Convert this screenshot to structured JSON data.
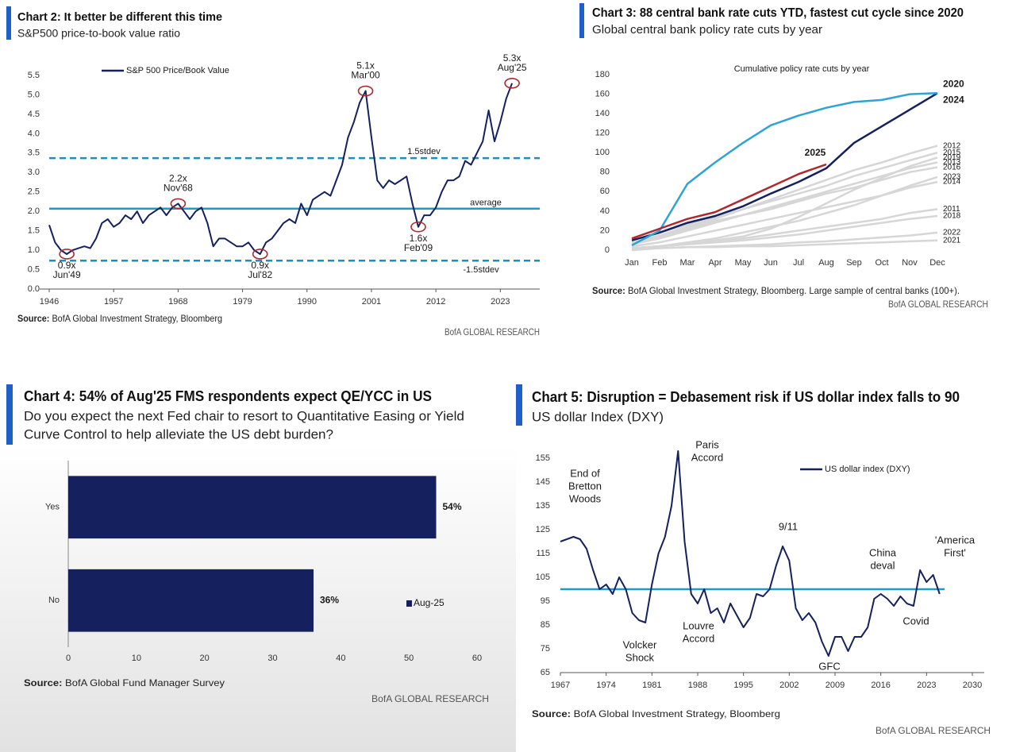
{
  "chart_data": [
    {
      "type": "line",
      "title": "Chart 2: It better be different this time",
      "subtitle": "S&P500 price-to-book value ratio",
      "x": [
        1946,
        1947,
        1948,
        1949,
        1950,
        1951,
        1952,
        1953,
        1954,
        1955,
        1956,
        1957,
        1958,
        1959,
        1960,
        1961,
        1962,
        1963,
        1964,
        1965,
        1966,
        1967,
        1968,
        1969,
        1970,
        1971,
        1972,
        1973,
        1974,
        1975,
        1976,
        1977,
        1978,
        1979,
        1980,
        1981,
        1982,
        1983,
        1984,
        1985,
        1986,
        1987,
        1988,
        1989,
        1990,
        1991,
        1992,
        1993,
        1994,
        1995,
        1996,
        1997,
        1998,
        1999,
        2000,
        2001,
        2002,
        2003,
        2004,
        2005,
        2006,
        2007,
        2008,
        2009,
        2010,
        2011,
        2012,
        2013,
        2014,
        2015,
        2016,
        2017,
        2018,
        2019,
        2020,
        2021,
        2022,
        2023,
        2024,
        2025
      ],
      "series": [
        {
          "name": "S&P 500 Price/Book Value",
          "color": "#14215e",
          "values": [
            1.65,
            1.2,
            1.0,
            0.9,
            1.0,
            1.05,
            1.1,
            1.05,
            1.3,
            1.7,
            1.8,
            1.6,
            1.7,
            1.9,
            1.8,
            2.0,
            1.7,
            1.9,
            2.0,
            2.1,
            1.9,
            2.1,
            2.2,
            2.0,
            1.8,
            2.0,
            2.1,
            1.7,
            1.1,
            1.3,
            1.3,
            1.2,
            1.1,
            1.1,
            1.2,
            1.0,
            0.9,
            1.2,
            1.3,
            1.5,
            1.7,
            1.8,
            1.7,
            2.2,
            1.9,
            2.3,
            2.4,
            2.5,
            2.4,
            2.8,
            3.2,
            3.9,
            4.3,
            4.8,
            5.1,
            3.9,
            2.8,
            2.6,
            2.8,
            2.7,
            2.8,
            2.9,
            2.2,
            1.6,
            1.9,
            1.9,
            2.1,
            2.5,
            2.8,
            2.8,
            2.9,
            3.3,
            3.2,
            3.5,
            3.8,
            4.6,
            3.8,
            4.3,
            4.9,
            5.3
          ]
        }
      ],
      "xlim": [
        1946,
        2030
      ],
      "xticks": [
        1946,
        1957,
        1968,
        1979,
        1990,
        2001,
        2012,
        2023
      ],
      "ylim": [
        0,
        5.5
      ],
      "yticks": [
        {
          "value": 0,
          "label": "0.0"
        },
        0.5,
        {
          "value": 1,
          "label": "1.0"
        },
        1.5,
        {
          "value": 2,
          "label": "2.0"
        },
        2.5,
        {
          "value": 3,
          "label": "3.0"
        },
        3.5,
        {
          "value": 4,
          "label": "4.0"
        },
        4.5,
        {
          "value": 5,
          "label": "5.0"
        },
        5.5
      ],
      "reference_lines": [
        {
          "value": 3.37,
          "label": "1.5stdev",
          "style": "dashed",
          "color": "#1a8fc2"
        },
        {
          "value": 2.07,
          "label": "average",
          "style": "solid",
          "color": "#1a9bc8"
        },
        {
          "value": 0.73,
          "label": "-1.5stdev",
          "style": "dashed",
          "color": "#1a8fc2"
        }
      ],
      "annotations": [
        {
          "x": 1949,
          "value": 0.9,
          "label": "0.9x",
          "date": "Jun'49"
        },
        {
          "x": 1968,
          "value": 2.2,
          "label": "2.2x",
          "date": "Nov'68"
        },
        {
          "x": 1982,
          "value": 0.9,
          "label": "0.9x",
          "date": "Jul'82"
        },
        {
          "x": 2000,
          "value": 5.1,
          "label": "5.1x",
          "date": "Mar'00"
        },
        {
          "x": 2009,
          "value": 1.6,
          "label": "1.6x",
          "date": "Feb'09"
        },
        {
          "x": 2025,
          "value": 5.3,
          "label": "5.3x",
          "date": "Aug'25"
        }
      ],
      "annotation_color": "#b0282e",
      "source_label": "Source:",
      "source": "BofA Global Investment Strategy, Bloomberg",
      "footer": "BofA GLOBAL RESEARCH"
    },
    {
      "type": "line",
      "title": "Chart 3: 88 central bank rate cuts YTD, fastest cut cycle since 2020",
      "subtitle": "Global central bank policy rate cuts by year",
      "plot_title": "Cumulative policy rate cuts by year",
      "categories": [
        "Jan",
        "Feb",
        "Mar",
        "Apr",
        "May",
        "Jun",
        "Jul",
        "Aug",
        "Sep",
        "Oct",
        "Nov",
        "Dec"
      ],
      "series": [
        {
          "name": "2012",
          "color": "#d6d6d6",
          "values": [
            8,
            15,
            24,
            32,
            42,
            52,
            62,
            72,
            82,
            90,
            99,
            107
          ]
        },
        {
          "name": "2015",
          "color": "#d6d6d6",
          "values": [
            10,
            18,
            26,
            34,
            42,
            50,
            58,
            66,
            76,
            84,
            92,
            100
          ]
        },
        {
          "name": "2019",
          "color": "#d6d6d6",
          "values": [
            2,
            4,
            6,
            10,
            14,
            22,
            34,
            48,
            62,
            74,
            86,
            95
          ]
        },
        {
          "name": "2013",
          "color": "#d6d6d6",
          "values": [
            6,
            12,
            20,
            28,
            36,
            44,
            52,
            60,
            68,
            76,
            84,
            90
          ]
        },
        {
          "name": "2016",
          "color": "#d6d6d6",
          "values": [
            8,
            14,
            22,
            30,
            36,
            42,
            50,
            58,
            64,
            72,
            80,
            85
          ]
        },
        {
          "name": "2023",
          "color": "#d6d6d6",
          "values": [
            2,
            4,
            8,
            12,
            18,
            24,
            30,
            38,
            46,
            56,
            66,
            75
          ]
        },
        {
          "name": "2014",
          "color": "#d6d6d6",
          "values": [
            4,
            8,
            14,
            20,
            26,
            32,
            38,
            44,
            50,
            56,
            64,
            70
          ]
        },
        {
          "name": "2011",
          "color": "#d6d6d6",
          "values": [
            2,
            4,
            6,
            8,
            12,
            16,
            20,
            24,
            28,
            32,
            38,
            42
          ]
        },
        {
          "name": "2018",
          "color": "#d6d6d6",
          "values": [
            2,
            4,
            6,
            8,
            10,
            13,
            16,
            20,
            24,
            28,
            32,
            35
          ]
        },
        {
          "name": "2022",
          "color": "#d6d6d6",
          "values": [
            0,
            2,
            3,
            4,
            5,
            6,
            8,
            9,
            11,
            13,
            15,
            18
          ]
        },
        {
          "name": "2021",
          "color": "#d6d6d6",
          "values": [
            2,
            2,
            3,
            3,
            4,
            4,
            5,
            6,
            7,
            8,
            9,
            10
          ]
        },
        {
          "name": "2024",
          "color": "#14215e",
          "values": [
            10,
            18,
            28,
            35,
            45,
            58,
            70,
            84,
            110,
            127,
            144,
            161
          ]
        },
        {
          "name": "2020",
          "color": "#2ea3d6",
          "values": [
            5,
            20,
            68,
            90,
            110,
            128,
            138,
            146,
            152,
            154,
            160,
            161
          ]
        },
        {
          "name": "2025",
          "color": "#b0282e",
          "values": [
            12,
            22,
            32,
            39,
            52,
            65,
            78,
            88,
            null,
            null,
            null,
            null
          ]
        }
      ],
      "ylim": [
        0,
        180
      ],
      "yticks": [
        0,
        20,
        40,
        60,
        80,
        100,
        120,
        140,
        160,
        180
      ],
      "source_label": "Source:",
      "source": "BofA Global Investment Strategy, Bloomberg. Large sample of central banks (100+).",
      "footer": "BofA GLOBAL RESEARCH"
    },
    {
      "type": "bar",
      "orientation": "horizontal",
      "title": "Chart 4: 54% of Aug'25 FMS respondents expect QE/YCC in US",
      "subtitle": [
        "Do you expect the next Fed chair to resort to Quantitative Easing or Yield",
        "Curve Control to help alleviate the US debt burden?"
      ],
      "categories": [
        "Yes",
        "No"
      ],
      "series": [
        {
          "name": "Aug-25",
          "color": "#14215e",
          "values": [
            54,
            36
          ],
          "value_labels": [
            "54%",
            "36%"
          ]
        }
      ],
      "value_label_color": "#b0282e",
      "xlim": [
        0,
        60
      ],
      "xticks": [
        0,
        10,
        20,
        30,
        40,
        50,
        60
      ],
      "source_label": "Source:",
      "source": "BofA Global Fund Manager Survey",
      "footer": "BofA GLOBAL RESEARCH"
    },
    {
      "type": "line",
      "title": "Chart 5: Disruption = Debasement risk if US dollar index falls to 90",
      "subtitle": "US dollar Index (DXY)",
      "x": [
        1967,
        1968,
        1969,
        1970,
        1971,
        1972,
        1973,
        1974,
        1975,
        1976,
        1977,
        1978,
        1979,
        1980,
        1981,
        1982,
        1983,
        1984,
        1985,
        1986,
        1987,
        1988,
        1989,
        1990,
        1991,
        1992,
        1993,
        1994,
        1995,
        1996,
        1997,
        1998,
        1999,
        2000,
        2001,
        2002,
        2003,
        2004,
        2005,
        2006,
        2007,
        2008,
        2009,
        2010,
        2011,
        2012,
        2013,
        2014,
        2015,
        2016,
        2017,
        2018,
        2019,
        2020,
        2021,
        2022,
        2023,
        2024,
        2025
      ],
      "series": [
        {
          "name": "US dollar index (DXY)",
          "color": "#14215e",
          "values": [
            120,
            121,
            122,
            121,
            117,
            108,
            100,
            102,
            98,
            105,
            100,
            90,
            87,
            86,
            102,
            115,
            122,
            135,
            158,
            120,
            98,
            94,
            100,
            90,
            92,
            86,
            94,
            89,
            84,
            88,
            98,
            97,
            100,
            110,
            118,
            112,
            92,
            87,
            90,
            86,
            78,
            72,
            80,
            80,
            74,
            80,
            80,
            84,
            96,
            98,
            96,
            93,
            97,
            94,
            93,
            108,
            103,
            106,
            98
          ]
        }
      ],
      "xlim": [
        1967,
        2030
      ],
      "xticks": [
        1967,
        1974,
        1981,
        1988,
        1995,
        2002,
        2009,
        2016,
        2023,
        2030
      ],
      "ylim": [
        65,
        160
      ],
      "yticks": [
        65,
        75,
        85,
        95,
        105,
        115,
        125,
        135,
        145,
        155
      ],
      "reference_lines": [
        {
          "value": 100,
          "style": "solid",
          "color": "#1a9bc8"
        }
      ],
      "annotations": [
        {
          "lines": [
            "End of",
            "Bretton",
            "Woods"
          ]
        },
        {
          "lines": [
            "Volcker",
            "Shock"
          ]
        },
        {
          "lines": [
            "Paris",
            "Accord"
          ]
        },
        {
          "lines": [
            "Louvre",
            "Accord"
          ]
        },
        {
          "lines": [
            "9/11"
          ]
        },
        {
          "lines": [
            "GFC"
          ]
        },
        {
          "lines": [
            "China",
            "deval"
          ]
        },
        {
          "lines": [
            "Covid"
          ]
        },
        {
          "lines": [
            "'America",
            "First'"
          ]
        }
      ],
      "annotation_color": "#a0282d",
      "source_label": "Source:",
      "source": "BofA Global Investment Strategy, Bloomberg",
      "footer": "BofA GLOBAL RESEARCH"
    }
  ]
}
